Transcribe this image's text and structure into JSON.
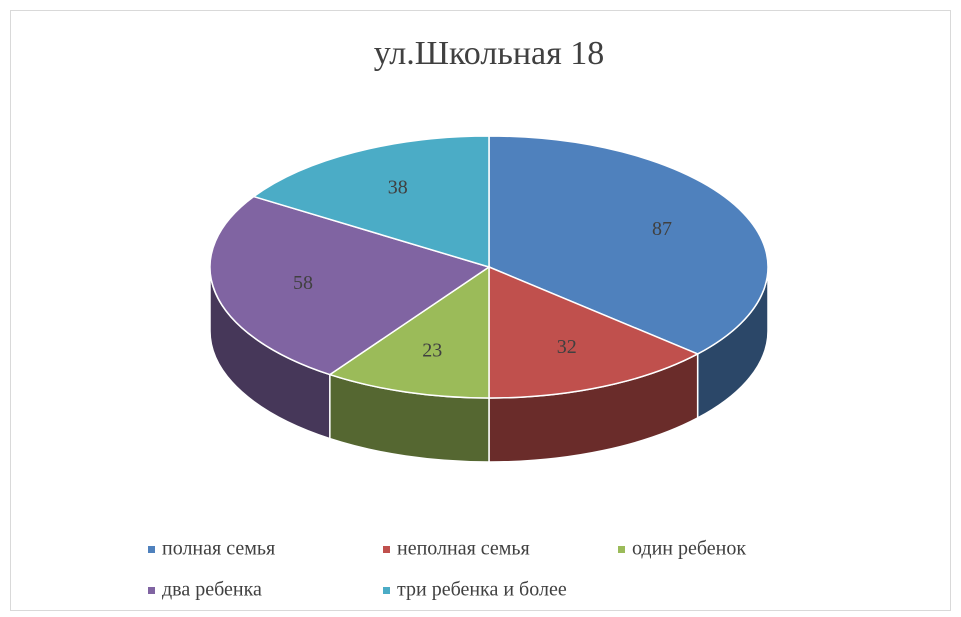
{
  "chart_data": {
    "type": "pie3d",
    "title": "ул.Школьная 18",
    "categories": [
      "полная семья",
      "неполная семья",
      "один ребенок",
      "два ребенка",
      "три ребенка и более"
    ],
    "values": [
      87,
      32,
      23,
      58,
      38
    ],
    "colors": [
      "#4f81bd",
      "#c0504d",
      "#9bbb59",
      "#8064a2",
      "#4bacc6"
    ],
    "legend": "bottom"
  }
}
